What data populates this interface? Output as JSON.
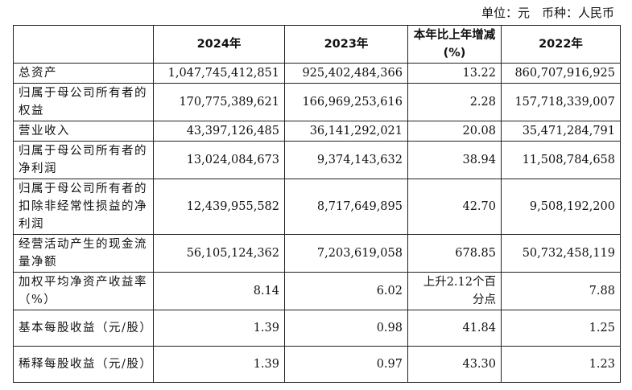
{
  "header": {
    "unit": "单位：元　币种：人民币"
  },
  "table": {
    "columns": [
      "2024年",
      "2023年",
      "本年比上年增减(%)",
      "2022年"
    ],
    "rows": [
      [
        "总资产",
        "1,047,745,412,851",
        "925,402,484,366",
        "13.22",
        "860,707,916,925"
      ],
      [
        "归属于母公司所有者的权益",
        "170,775,389,621",
        "166,969,253,616",
        "2.28",
        "157,718,339,007"
      ],
      [
        "营业收入",
        "43,397,126,485",
        "36,141,292,021",
        "20.08",
        "35,471,284,791"
      ],
      [
        "归属于母公司所有者的净利润",
        "13,024,084,673",
        "9,374,143,632",
        "38.94",
        "11,508,784,658"
      ],
      [
        "归属于母公司所有者的扣除非经常性损益的净利润",
        "12,439,955,582",
        "8,717,649,895",
        "42.70",
        "9,508,192,200"
      ],
      [
        "经营活动产生的现金流量净额",
        "56,105,124,362",
        "7,203,619,058",
        "678.85",
        "50,732,458,119"
      ],
      [
        "加权平均净资产收益率（%）",
        "8.14",
        "6.02",
        "上升2.12个百分点",
        "7.88"
      ],
      [
        "基本每股收益（元/股）",
        "1.39",
        "0.98",
        "41.84",
        "1.25"
      ],
      [
        "稀释每股收益（元/股）",
        "1.39",
        "0.97",
        "43.30",
        "1.23"
      ]
    ]
  }
}
